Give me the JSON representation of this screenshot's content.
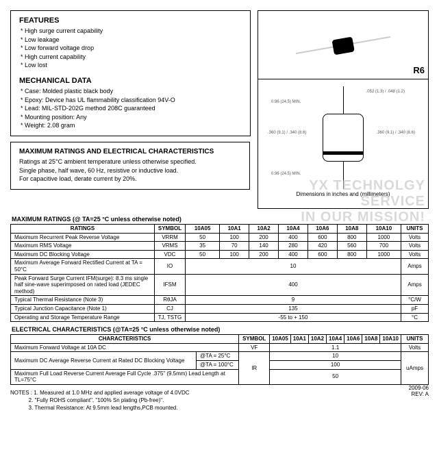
{
  "features": {
    "title": "FEATURES",
    "items": [
      "High surge current capability",
      "Low leakage",
      "Low forward voltage drop",
      "High current capability",
      "Low lost"
    ]
  },
  "mechanical": {
    "title": "MECHANICAL DATA",
    "items": [
      "Case: Molded plastic black body",
      "Epoxy: Device has UL flammability classification 94V-O",
      "Lead: MIL-STD-202G method 208C guaranteed",
      "Mounting position: Any",
      "Weight: 2.08 gram"
    ]
  },
  "package_label": "R6",
  "dim_caption": "Dimensions in inches and (millimeters)",
  "dims": {
    "lead_len": "0.96 (24.5) MIN.",
    "lead_dia": ".052 (1.3) / .048 (1.2)",
    "body_dia": ".360 (9.1) / .340 (8.6)",
    "body_len": ".360 (9.1) / .340 (8.6)"
  },
  "ratings_intro": {
    "title": "MAXIMUM RATINGS AND ELECTRICAL CHARACTERISTICS",
    "l1": "Ratings at 25°C ambient temperature unless otherwise specified.",
    "l2": "Single phase, half wave, 60 Hz, resistive or inductive load.",
    "l3": "For capacitive load, derate current by 20%."
  },
  "max_ratings_header": "MAXIMUM RATINGS (@ TA=25 °C unless otherwise noted)",
  "elec_header": "ELECTRICAL CHARACTERISTICS (@TA=25 °C unless otherwise noted)",
  "cols": {
    "ratings": "RATINGS",
    "chars": "CHARACTERISTICS",
    "symbol": "SYMBOL",
    "units": "UNITS"
  },
  "parts": [
    "10A05",
    "10A1",
    "10A2",
    "10A4",
    "10A6",
    "10A8",
    "10A10"
  ],
  "mr": [
    {
      "n": "Maximum Recurrent Peak Reverse Voltage",
      "s": "VRRM",
      "v": [
        "50",
        "100",
        "200",
        "400",
        "600",
        "800",
        "1000"
      ],
      "u": "Volts"
    },
    {
      "n": "Maximum RMS Voltage",
      "s": "VRMS",
      "v": [
        "35",
        "70",
        "140",
        "280",
        "420",
        "560",
        "700"
      ],
      "u": "Volts"
    },
    {
      "n": "Maximum DC Blocking Voltage",
      "s": "VDC",
      "v": [
        "50",
        "100",
        "200",
        "400",
        "600",
        "800",
        "1000"
      ],
      "u": "Volts"
    },
    {
      "n": "Maximum Average Forward Rectified Current at TA = 50°C",
      "s": "IO",
      "span": "10",
      "u": "Amps"
    },
    {
      "n": "Peak Forward Surge Current IFM(surge): 8.3 ms single half sine-wave superimposed on rated load (JEDEC method)",
      "s": "IFSM",
      "span": "400",
      "u": "Amps"
    },
    {
      "n": "Typical Thermal Resistance (Note 3)",
      "s": "RθJA",
      "span": "9",
      "u": "°C/W"
    },
    {
      "n": "Typical Junction Capacitance (Note 1)",
      "s": "CJ",
      "span": "135",
      "u": "pF"
    },
    {
      "n": "Operating and Storage Temperature Range",
      "s": "TJ, TSTG",
      "span": "-55 to + 150",
      "u": "°C"
    }
  ],
  "ec": {
    "vf": {
      "n": "Maximum Forward Voltage at 10A DC",
      "s": "VF",
      "span": "1.1",
      "u": "Volts"
    },
    "ir1": {
      "n": "Maximum DC Average Reverse Current at Rated DC Blocking Voltage",
      "c": "@TA = 25°C",
      "span": "10"
    },
    "ir2": {
      "c": "@TA = 100°C",
      "span": "100"
    },
    "ir_s": "IR",
    "ir_u": "uAmps",
    "fl": {
      "n": "Maximum Full Load Reverse Current Average Full Cycle .375\" (9.5mm) Lead Length at TL=75°C",
      "span": "50"
    }
  },
  "notes": {
    "label": "NOTES :",
    "n1": "1. Measured at 1.0 MHz and applied average voltage of 4.0VDC",
    "n2": "2. \"Fully ROHS compliant\", \"100% Sn plating (Pb-free)\".",
    "n3": "3. Thermal Resistance: At 9.5mm lead lengths,PCB mounted."
  },
  "rev": {
    "date": "2009-06",
    "rev": "REV: A"
  },
  "watermark": {
    "l1": "YX TECHNOLGY",
    "l2": "SERVICE",
    "l3": "IN OUR MISSION!"
  }
}
